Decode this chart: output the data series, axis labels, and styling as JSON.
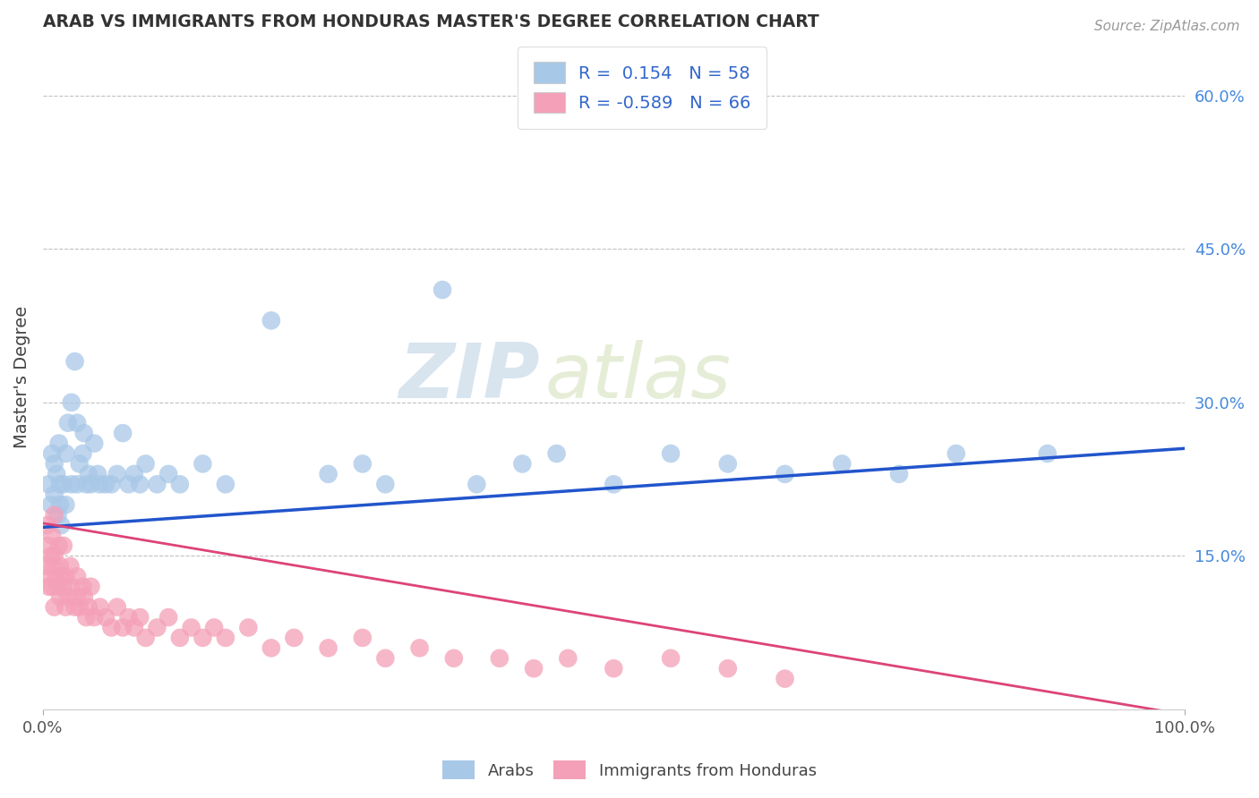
{
  "title": "ARAB VS IMMIGRANTS FROM HONDURAS MASTER'S DEGREE CORRELATION CHART",
  "source": "Source: ZipAtlas.com",
  "ylabel": "Master's Degree",
  "xlim": [
    0,
    1.0
  ],
  "ylim": [
    0,
    0.65
  ],
  "ytick_labels_right": [
    "15.0%",
    "30.0%",
    "45.0%",
    "60.0%"
  ],
  "ytick_positions_right": [
    0.15,
    0.3,
    0.45,
    0.6
  ],
  "watermark_zip": "ZIP",
  "watermark_atlas": "atlas",
  "legend_arab_R": "0.154",
  "legend_arab_N": "58",
  "legend_honduran_R": "-0.589",
  "legend_honduran_N": "66",
  "arab_color": "#a8c8e8",
  "honduran_color": "#f4a0b8",
  "arab_line_color": "#2255cc",
  "honduran_line_color": "#dd4477",
  "background_color": "#ffffff",
  "arab_line_start": 0.178,
  "arab_line_end": 0.255,
  "honduran_line_start": 0.182,
  "honduran_line_end": -0.005,
  "arab_points_x": [
    0.005,
    0.007,
    0.008,
    0.01,
    0.01,
    0.012,
    0.013,
    0.014,
    0.015,
    0.015,
    0.016,
    0.018,
    0.02,
    0.02,
    0.022,
    0.025,
    0.025,
    0.028,
    0.03,
    0.03,
    0.032,
    0.035,
    0.036,
    0.038,
    0.04,
    0.042,
    0.045,
    0.048,
    0.05,
    0.055,
    0.06,
    0.065,
    0.07,
    0.075,
    0.08,
    0.085,
    0.09,
    0.1,
    0.11,
    0.12,
    0.14,
    0.16,
    0.2,
    0.25,
    0.28,
    0.3,
    0.35,
    0.38,
    0.42,
    0.45,
    0.5,
    0.55,
    0.6,
    0.65,
    0.7,
    0.75,
    0.8,
    0.88
  ],
  "arab_points_y": [
    0.22,
    0.2,
    0.25,
    0.21,
    0.24,
    0.23,
    0.19,
    0.26,
    0.22,
    0.2,
    0.18,
    0.22,
    0.2,
    0.25,
    0.28,
    0.3,
    0.22,
    0.34,
    0.22,
    0.28,
    0.24,
    0.25,
    0.27,
    0.22,
    0.23,
    0.22,
    0.26,
    0.23,
    0.22,
    0.22,
    0.22,
    0.23,
    0.27,
    0.22,
    0.23,
    0.22,
    0.24,
    0.22,
    0.23,
    0.22,
    0.24,
    0.22,
    0.38,
    0.23,
    0.24,
    0.22,
    0.41,
    0.22,
    0.24,
    0.25,
    0.22,
    0.25,
    0.24,
    0.23,
    0.24,
    0.23,
    0.25,
    0.25
  ],
  "honduran_points_x": [
    0.003,
    0.004,
    0.005,
    0.005,
    0.006,
    0.007,
    0.008,
    0.008,
    0.009,
    0.01,
    0.01,
    0.01,
    0.012,
    0.013,
    0.014,
    0.015,
    0.015,
    0.016,
    0.018,
    0.018,
    0.02,
    0.02,
    0.022,
    0.024,
    0.025,
    0.028,
    0.03,
    0.03,
    0.032,
    0.035,
    0.036,
    0.038,
    0.04,
    0.042,
    0.045,
    0.05,
    0.055,
    0.06,
    0.065,
    0.07,
    0.075,
    0.08,
    0.085,
    0.09,
    0.1,
    0.11,
    0.12,
    0.13,
    0.14,
    0.15,
    0.16,
    0.18,
    0.2,
    0.22,
    0.25,
    0.28,
    0.3,
    0.33,
    0.36,
    0.4,
    0.43,
    0.46,
    0.5,
    0.55,
    0.6,
    0.65
  ],
  "honduran_points_y": [
    0.14,
    0.18,
    0.12,
    0.16,
    0.13,
    0.15,
    0.12,
    0.17,
    0.14,
    0.1,
    0.15,
    0.19,
    0.13,
    0.12,
    0.16,
    0.11,
    0.14,
    0.13,
    0.12,
    0.16,
    0.1,
    0.13,
    0.11,
    0.14,
    0.12,
    0.1,
    0.11,
    0.13,
    0.1,
    0.12,
    0.11,
    0.09,
    0.1,
    0.12,
    0.09,
    0.1,
    0.09,
    0.08,
    0.1,
    0.08,
    0.09,
    0.08,
    0.09,
    0.07,
    0.08,
    0.09,
    0.07,
    0.08,
    0.07,
    0.08,
    0.07,
    0.08,
    0.06,
    0.07,
    0.06,
    0.07,
    0.05,
    0.06,
    0.05,
    0.05,
    0.04,
    0.05,
    0.04,
    0.05,
    0.04,
    0.03
  ]
}
